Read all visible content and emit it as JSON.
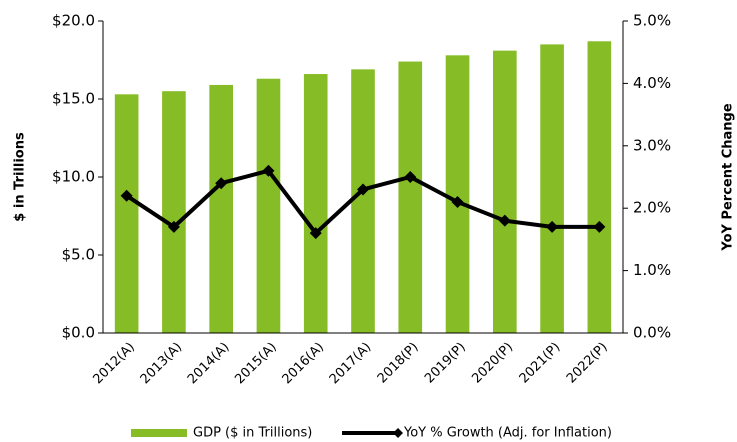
{
  "chart_data": {
    "type": "bar_line",
    "categories": [
      "2012(A)",
      "2013(A)",
      "2014(A)",
      "2015(A)",
      "2016(A)",
      "2017(A)",
      "2018(P)",
      "2019(P)",
      "2020(P)",
      "2021(P)",
      "2022(P)"
    ],
    "series": [
      {
        "name": "GDP ($ in Trillions)",
        "color": "#86bc25",
        "type": "bar",
        "axis": "y",
        "values": [
          15.3,
          15.5,
          15.9,
          16.3,
          16.6,
          16.9,
          17.4,
          17.8,
          18.1,
          18.5,
          18.7
        ]
      },
      {
        "name": "YoY % Growth (Adj. for Inflation)",
        "color": "#000000",
        "type": "line",
        "axis": "y2",
        "values": [
          2.2,
          1.7,
          2.4,
          2.6,
          1.6,
          2.3,
          2.5,
          2.1,
          1.8,
          1.7,
          1.7
        ]
      }
    ],
    "y_label": "$ in Trillions",
    "y2_label": "YoY Percent Change",
    "ylim": [
      0,
      20
    ],
    "yticks": [
      {
        "value": 0,
        "label": "$0.0"
      },
      {
        "value": 5,
        "label": "$5.0"
      },
      {
        "value": 10,
        "label": "$10.0"
      },
      {
        "value": 15,
        "label": "$15.0"
      },
      {
        "value": 20,
        "label": "$20.0"
      }
    ],
    "y2lim": [
      0,
      5
    ],
    "y2ticks": [
      {
        "value": 0,
        "label": "0.0%"
      },
      {
        "value": 1,
        "label": "1.0%"
      },
      {
        "value": 2,
        "label": "2.0%"
      },
      {
        "value": 3,
        "label": "3.0%"
      },
      {
        "value": 4,
        "label": "4.0%"
      },
      {
        "value": 5,
        "label": "5.0%"
      }
    ],
    "legend": "bottom"
  }
}
